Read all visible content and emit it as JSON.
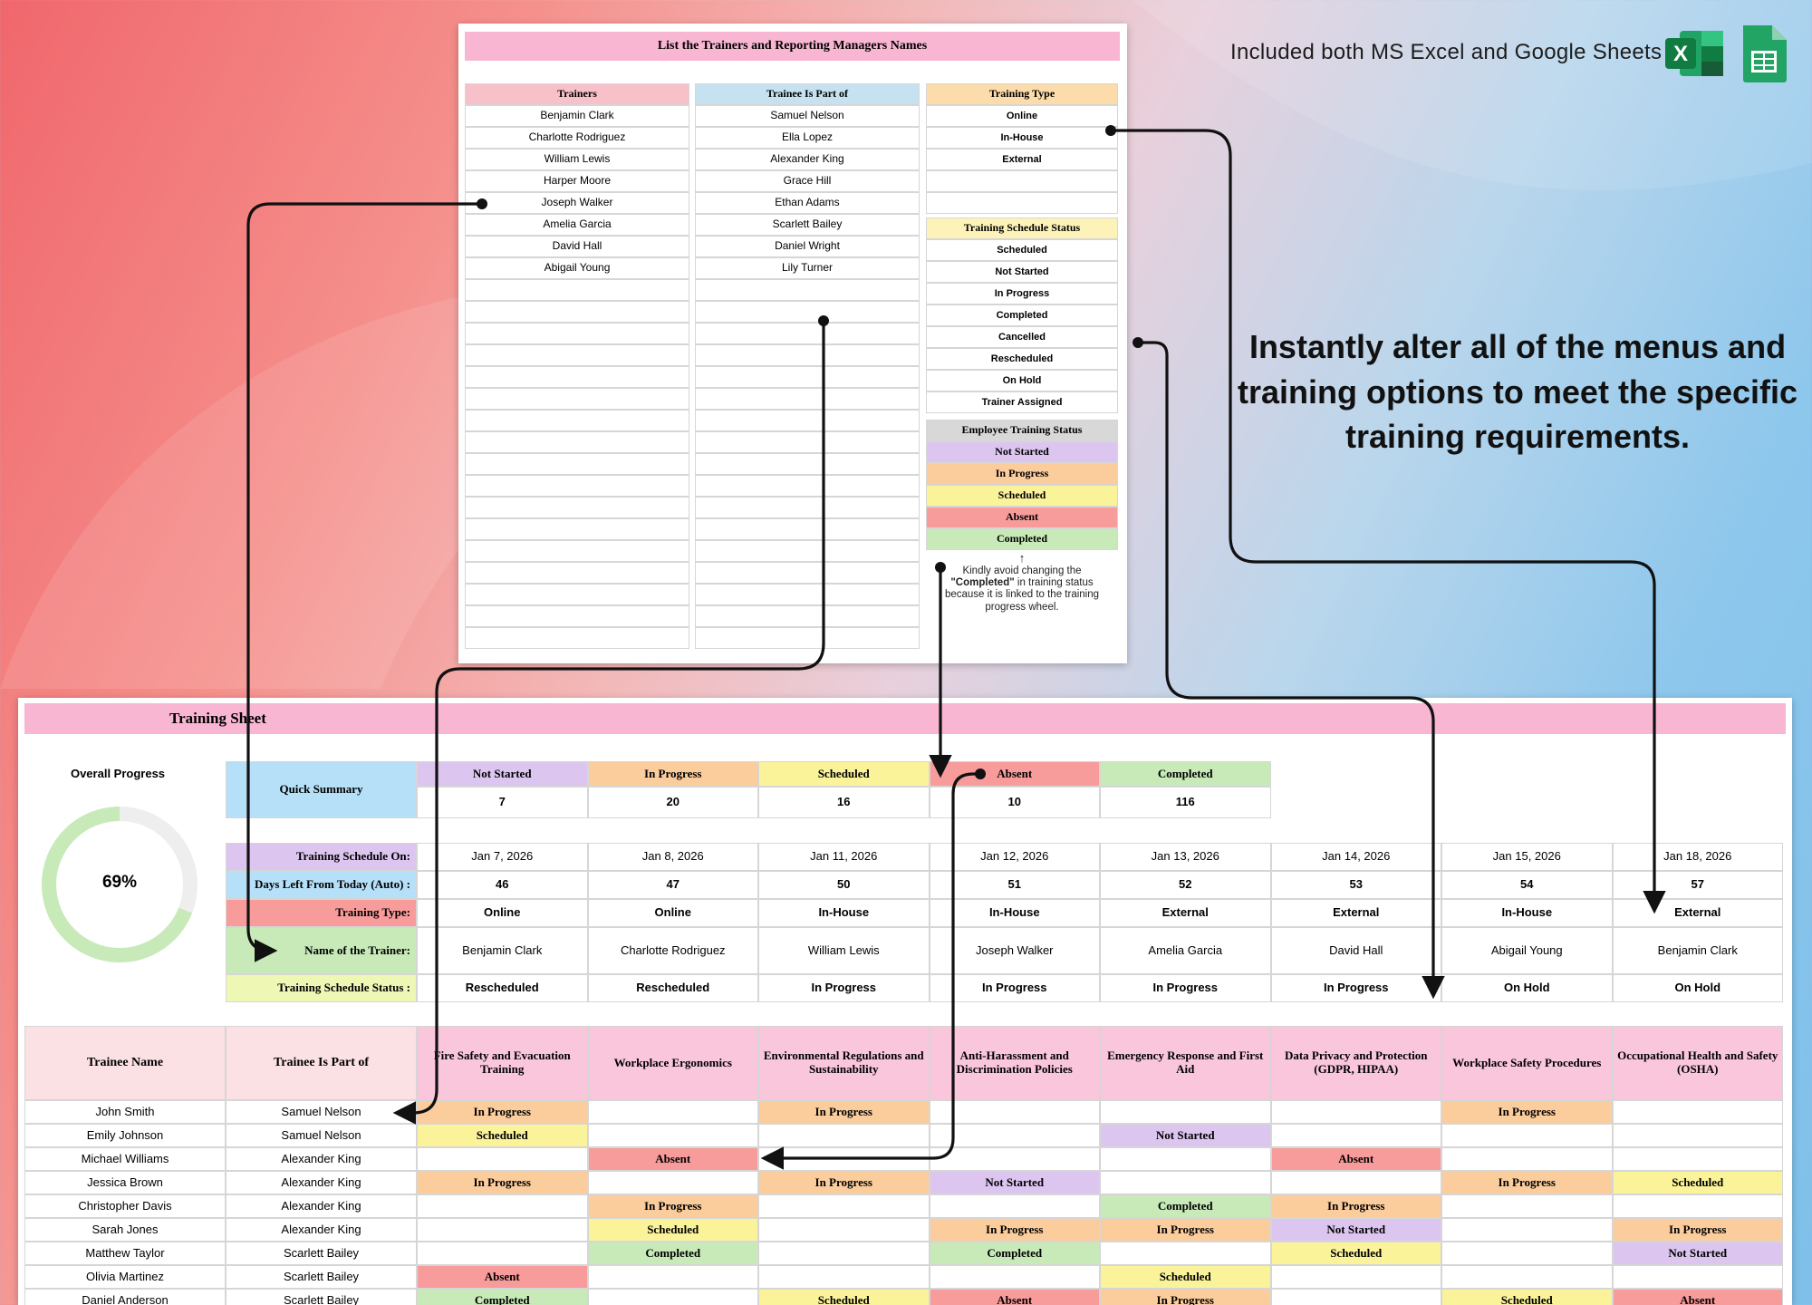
{
  "header": {
    "tagline": "Included both MS Excel and Google Sheets",
    "promo_text": "Instantly alter all of the menus and training options to meet the specific training requirements.",
    "excel_icon_letter": "X"
  },
  "lists_sheet": {
    "title": "List the Trainers and Reporting Managers Names",
    "trainers_header": "Trainers",
    "trainers": [
      "Benjamin Clark",
      "Charlotte Rodriguez",
      "William Lewis",
      "Harper Moore",
      "Joseph Walker",
      "Amelia Garcia",
      "David Hall",
      "Abigail Young"
    ],
    "part_of_header": "Trainee Is Part of",
    "part_of": [
      "Samuel Nelson",
      "Ella Lopez",
      "Alexander King",
      "Grace Hill",
      "Ethan Adams",
      "Scarlett Bailey",
      "Daniel Wright",
      "Lily Turner"
    ],
    "training_type_header": "Training Type",
    "training_types": [
      "Online",
      "In-House",
      "External"
    ],
    "schedule_status_header": "Training Schedule Status",
    "schedule_statuses": [
      "Scheduled",
      "Not Started",
      "In Progress",
      "Completed",
      "Cancelled",
      "Rescheduled",
      "On Hold",
      "Trainer Assigned"
    ],
    "employee_status_header": "Employee Training Status",
    "employee_statuses": [
      "Not Started",
      "In Progress",
      "Scheduled",
      "Absent",
      "Completed"
    ],
    "note_arrow": "↑",
    "note_pre": "Kindly avoid changing the",
    "note_bold": "\"Completed\"",
    "note_mid": " in training status",
    "note_post1": "because it is linked to the training",
    "note_post2": "progress wheel."
  },
  "training_sheet": {
    "title": "Training Sheet",
    "overall_progress_label": "Overall Progress",
    "overall_progress_value": 69,
    "overall_progress_text": "69%",
    "quick_summary_label": "Quick Summary",
    "summary": [
      {
        "label": "Not Started",
        "value": "7"
      },
      {
        "label": "In Progress",
        "value": "20"
      },
      {
        "label": "Scheduled",
        "value": "16"
      },
      {
        "label": "Absent",
        "value": "10"
      },
      {
        "label": "Completed",
        "value": "116"
      }
    ],
    "row_labels": {
      "schedule_on": "Training Schedule On:",
      "days_left": "Days Left From Today (Auto) :",
      "type": "Training Type:",
      "trainer": "Name of the Trainer:",
      "status": "Training Schedule Status :"
    },
    "dates": [
      "Jan 7, 2026",
      "Jan 8, 2026",
      "Jan 11, 2026",
      "Jan 12, 2026",
      "Jan 13, 2026",
      "Jan 14, 2026",
      "Jan 15, 2026",
      "Jan 18, 2026"
    ],
    "days_left": [
      "46",
      "47",
      "50",
      "51",
      "52",
      "53",
      "54",
      "57"
    ],
    "types": [
      "Online",
      "Online",
      "In-House",
      "In-House",
      "External",
      "External",
      "In-House",
      "External"
    ],
    "trainers": [
      "Benjamin Clark",
      "Charlotte Rodriguez",
      "William Lewis",
      "Joseph Walker",
      "Amelia Garcia",
      "David Hall",
      "Abigail Young",
      "Benjamin Clark"
    ],
    "schedule_status": [
      "Rescheduled",
      "Rescheduled",
      "In Progress",
      "In Progress",
      "In Progress",
      "In Progress",
      "On Hold",
      "On Hold"
    ],
    "trainee_name_header": "Trainee Name",
    "part_of_header": "Trainee Is Part of",
    "courses": [
      "Fire Safety and Evacuation Training",
      "Workplace Ergonomics",
      "Environmental Regulations and Sustainability",
      "Anti-Harassment and Discrimination Policies",
      "Emergency Response and First Aid",
      "Data Privacy and Protection (GDPR, HIPAA)",
      "Workplace Safety Procedures",
      "Occupational Health and Safety (OSHA)"
    ],
    "trainees": [
      {
        "name": "John Smith",
        "part_of": "Samuel Nelson",
        "status": [
          "In Progress",
          "",
          "In Progress",
          "",
          "",
          "",
          "In Progress",
          ""
        ]
      },
      {
        "name": "Emily Johnson",
        "part_of": "Samuel Nelson",
        "status": [
          "Scheduled",
          "",
          "",
          "",
          "Not Started",
          "",
          "",
          ""
        ]
      },
      {
        "name": "Michael Williams",
        "part_of": "Alexander King",
        "status": [
          "",
          "Absent",
          "",
          "",
          "",
          "Absent",
          "",
          ""
        ]
      },
      {
        "name": "Jessica Brown",
        "part_of": "Alexander King",
        "status": [
          "In Progress",
          "",
          "In Progress",
          "Not Started",
          "",
          "",
          "In Progress",
          "Scheduled"
        ]
      },
      {
        "name": "Christopher Davis",
        "part_of": "Alexander King",
        "status": [
          "",
          "In Progress",
          "",
          "",
          "Completed",
          "In Progress",
          "",
          ""
        ]
      },
      {
        "name": "Sarah Jones",
        "part_of": "Alexander King",
        "status": [
          "",
          "Scheduled",
          "",
          "In Progress",
          "In Progress",
          "Not Started",
          "",
          "In Progress"
        ]
      },
      {
        "name": "Matthew Taylor",
        "part_of": "Scarlett Bailey",
        "status": [
          "",
          "Completed",
          "",
          "Completed",
          "",
          "Scheduled",
          "",
          "Not Started"
        ]
      },
      {
        "name": "Olivia Martinez",
        "part_of": "Scarlett Bailey",
        "status": [
          "Absent",
          "",
          "",
          "",
          "Scheduled",
          "",
          "",
          ""
        ]
      },
      {
        "name": "Daniel Anderson",
        "part_of": "Scarlett Bailey",
        "status": [
          "Completed",
          "",
          "Scheduled",
          "Absent",
          "In Progress",
          "",
          "Scheduled",
          "Absent"
        ]
      }
    ]
  },
  "colors": {
    "pink_header": "#f8b6d2",
    "trainers_header": "#f8c0c8",
    "part_of_header": "#c6e2f0",
    "type_header": "#fbdcaa",
    "schedule_header": "#fdf3b8",
    "employee_header": "#d8d8d8",
    "Not Started": "#dcc6f0",
    "In Progress": "#fbcc9c",
    "Scheduled": "#fbf39a",
    "Absent": "#f79b9b",
    "Completed": "#c7eab8",
    "quick_summary": "#b6e0f8",
    "row_schedule_on": "#dcc6f0",
    "row_days_left": "#b6e0f8",
    "row_type": "#f79b9b",
    "row_trainer": "#c7eab8",
    "row_status": "#eef7b4",
    "ring": "#c7eab8",
    "ring_track": "#eeeeee",
    "excel": "#1f7a45",
    "sheets": "#21a464"
  }
}
